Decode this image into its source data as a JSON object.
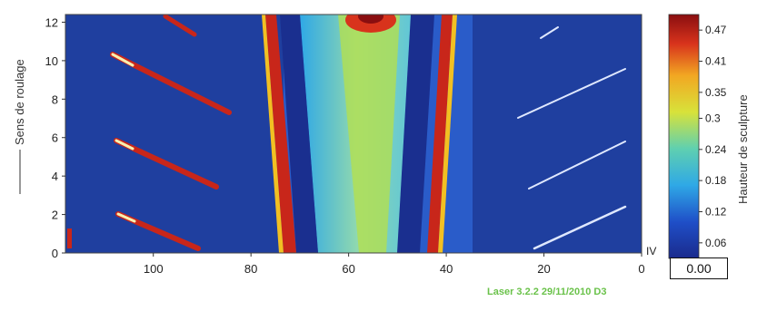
{
  "chart_data": {
    "type": "heatmap",
    "ylabel": "Sens de roulage",
    "colorbar_label": "Hauteur de sculpture",
    "x_ticks": [
      "100",
      "80",
      "60",
      "40",
      "20",
      "0"
    ],
    "y_ticks": [
      "0",
      "2",
      "4",
      "6",
      "8",
      "10",
      "12"
    ],
    "x_range": [
      118,
      0
    ],
    "y_range": [
      0,
      12.4
    ],
    "colorbar_ticks": [
      "0.47",
      "0.41",
      "0.35",
      "0.3",
      "0.24",
      "0.18",
      "0.12",
      "0.06"
    ],
    "colorbar_range": [
      0.03,
      0.5
    ],
    "colormap": "jet",
    "background_color": "#1f3f9f",
    "info_text": "Laser 3.2.2 29/11/2010 D3",
    "iv_label": "IV",
    "readout_value": "0.00"
  }
}
